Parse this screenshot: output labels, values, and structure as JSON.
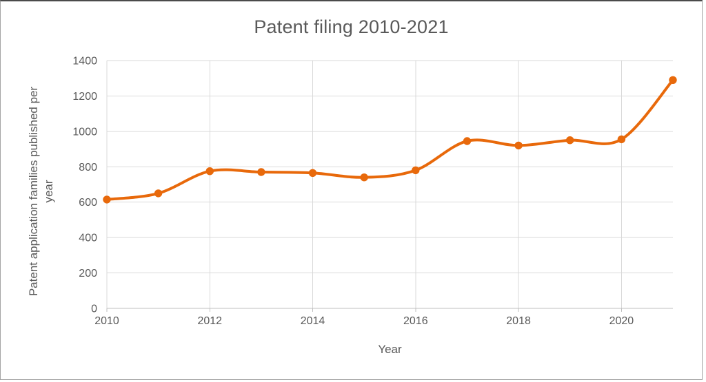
{
  "window": {
    "background_color": "#ffffff",
    "frame_border_color": "#a3a3a3"
  },
  "chart_data": {
    "type": "line",
    "title": "Patent filing 2010-2021",
    "xlabel": "Year",
    "ylabel": "Patent application families published per year",
    "ylabel_lines": [
      "Patent application families published per",
      "year"
    ],
    "categories": [
      2010,
      2011,
      2012,
      2013,
      2014,
      2015,
      2016,
      2017,
      2018,
      2019,
      2020,
      2021
    ],
    "values": [
      615,
      650,
      775,
      770,
      765,
      740,
      780,
      945,
      920,
      950,
      955,
      1290
    ],
    "series_name": "",
    "ylim": [
      0,
      1400
    ],
    "y_tick_step": 200,
    "y_tick_labels": [
      "0",
      "200",
      "400",
      "600",
      "800",
      "1000",
      "1200",
      "1400"
    ],
    "x_tick_step": 2,
    "x_tick_labels": [
      "2010",
      "2012",
      "2014",
      "2016",
      "2018",
      "2020"
    ],
    "grid": true,
    "legend": false,
    "smoothed": true,
    "marker": "circle",
    "line_color": "#e8690b",
    "marker_color": "#e8690b",
    "gridline_color": "#d9d9d9",
    "axis_line_color": "#bfbfbf",
    "text_color": "#595959"
  }
}
